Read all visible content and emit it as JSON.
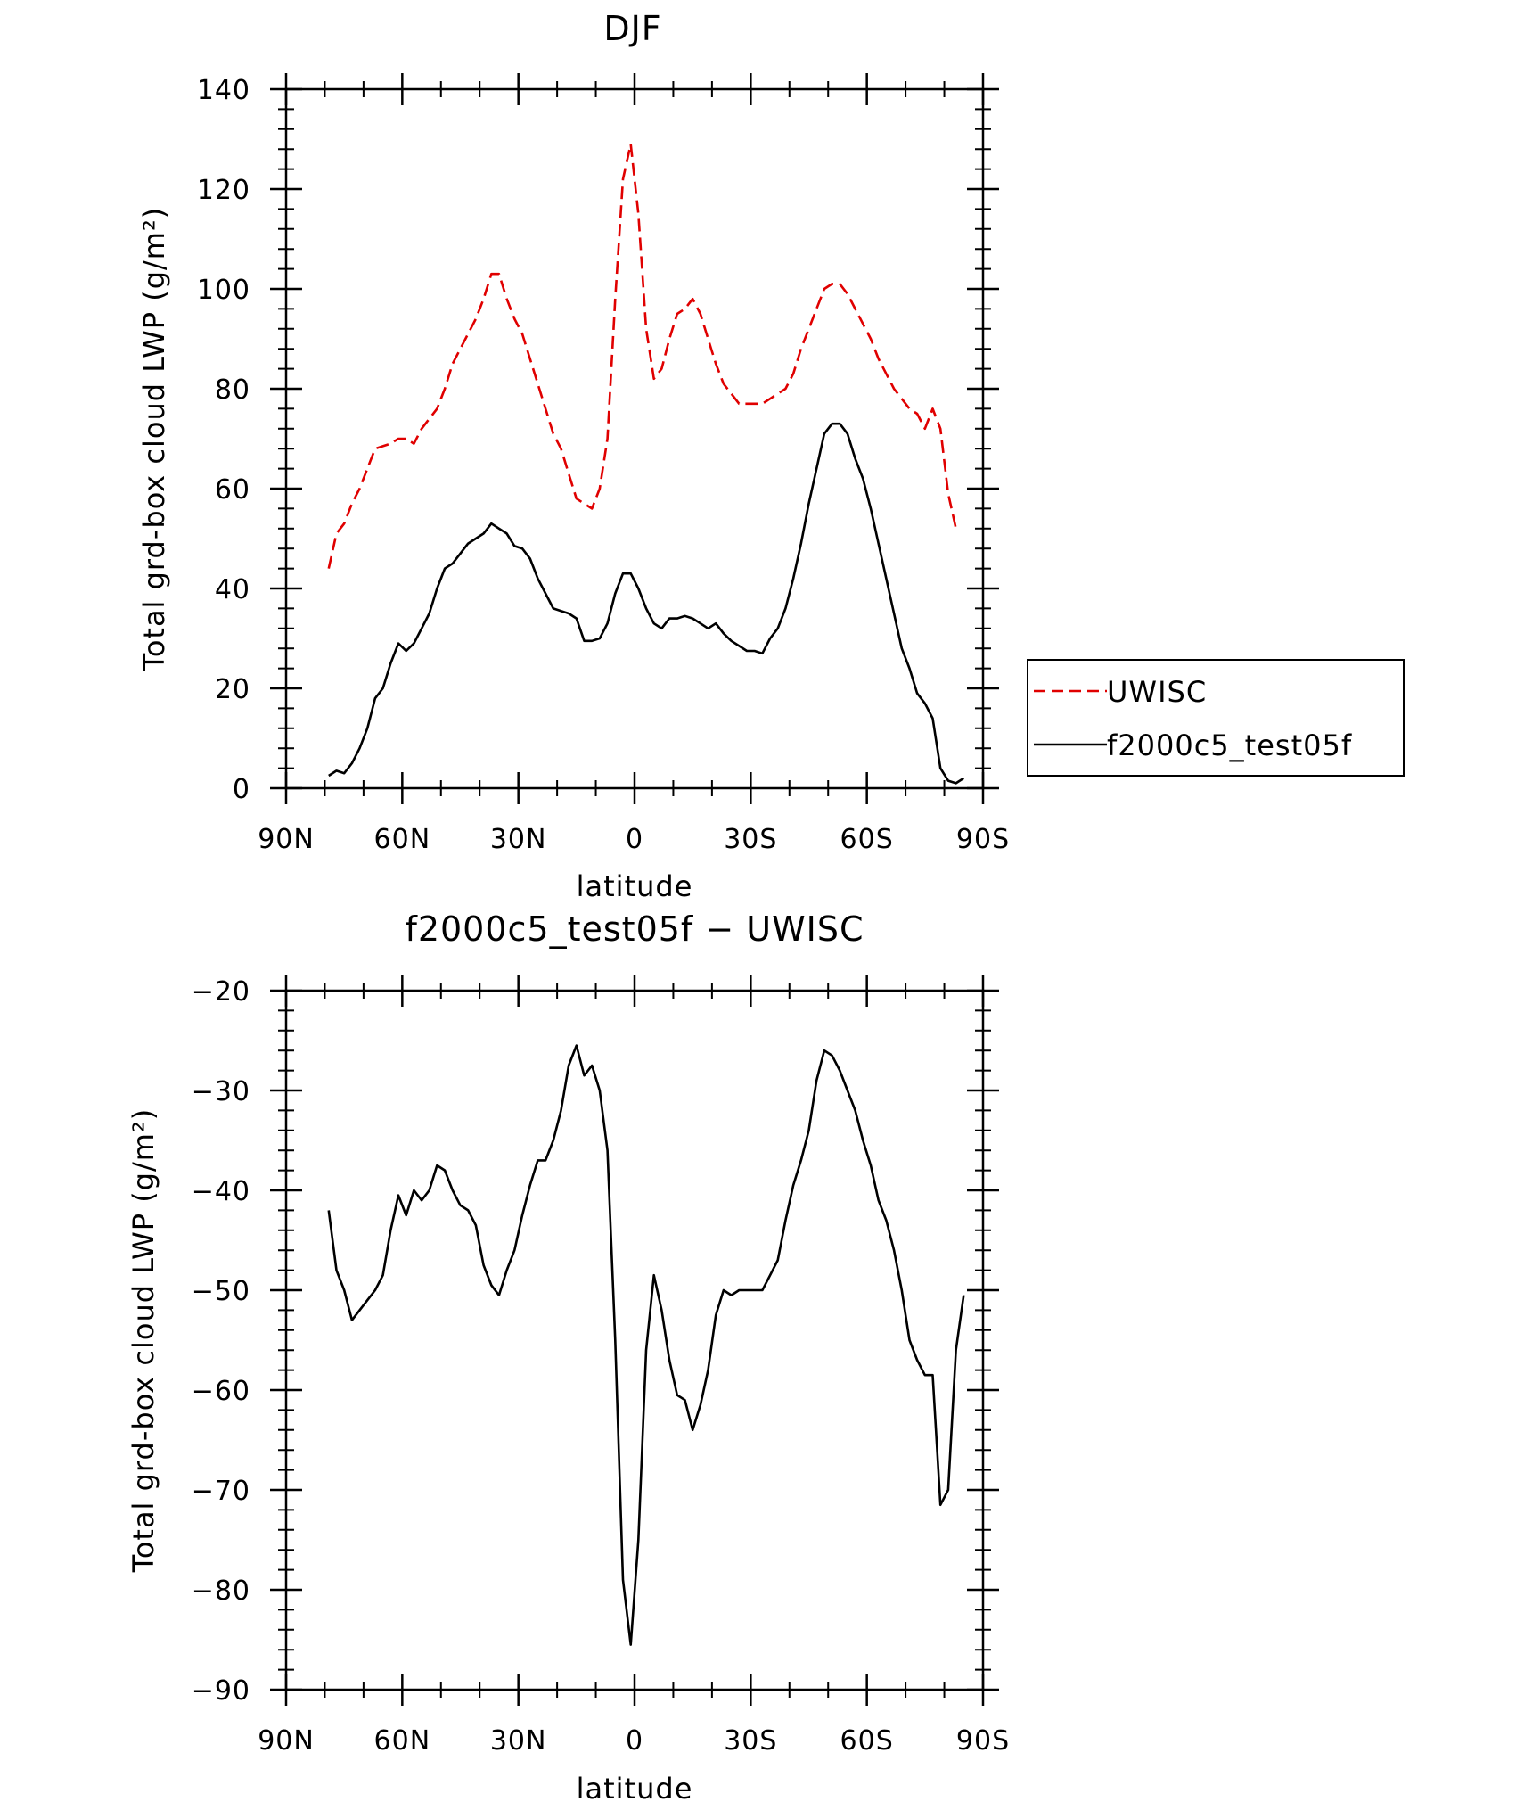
{
  "chart_data": [
    {
      "type": "line",
      "title": "DJF",
      "xlabel": "latitude",
      "ylabel": "Total grd-box cloud LWP (g/m²)",
      "xlim": [
        90,
        -90
      ],
      "ylim": [
        0,
        140
      ],
      "xticks": [
        90,
        60,
        30,
        0,
        -30,
        -60,
        -90
      ],
      "xtick_labels": [
        "90N",
        "60N",
        "30N",
        "0",
        "30S",
        "60S",
        "90S"
      ],
      "yticks": [
        0,
        20,
        40,
        60,
        80,
        100,
        120,
        140
      ],
      "ytick_labels": [
        "0",
        "20",
        "40",
        "60",
        "80",
        "100",
        "120",
        "140"
      ],
      "legend": {
        "placement": "right-outside"
      },
      "series": [
        {
          "name": "UWISC",
          "color": "#e00000",
          "dash": "dashed",
          "points": [
            [
              79,
              44
            ],
            [
              77,
              51
            ],
            [
              75,
              53
            ],
            [
              73,
              57
            ],
            [
              71,
              60
            ],
            [
              69,
              64
            ],
            [
              67,
              68
            ],
            [
              65,
              68.5
            ],
            [
              63,
              69
            ],
            [
              61,
              70
            ],
            [
              59,
              70
            ],
            [
              57,
              69
            ],
            [
              55,
              72
            ],
            [
              53,
              74
            ],
            [
              51,
              76
            ],
            [
              49,
              80
            ],
            [
              47,
              85
            ],
            [
              45,
              88
            ],
            [
              43,
              91
            ],
            [
              41,
              94
            ],
            [
              39,
              98
            ],
            [
              37,
              103
            ],
            [
              35,
              103
            ],
            [
              33,
              98
            ],
            [
              31,
              94
            ],
            [
              29,
              91
            ],
            [
              27,
              86
            ],
            [
              25,
              81
            ],
            [
              23,
              76
            ],
            [
              21,
              71
            ],
            [
              19,
              68
            ],
            [
              17,
              63
            ],
            [
              15,
              58
            ],
            [
              13,
              57
            ],
            [
              11,
              56
            ],
            [
              9,
              60
            ],
            [
              7,
              70
            ],
            [
              5,
              98
            ],
            [
              3,
              122
            ],
            [
              1,
              129
            ],
            [
              -1,
              115
            ],
            [
              -3,
              92
            ],
            [
              -5,
              82
            ],
            [
              -7,
              84
            ],
            [
              -9,
              90
            ],
            [
              -11,
              95
            ],
            [
              -13,
              96
            ],
            [
              -15,
              98
            ],
            [
              -17,
              95
            ],
            [
              -19,
              90
            ],
            [
              -21,
              85
            ],
            [
              -23,
              81
            ],
            [
              -25,
              79
            ],
            [
              -27,
              77
            ],
            [
              -29,
              77
            ],
            [
              -31,
              77
            ],
            [
              -33,
              77
            ],
            [
              -35,
              78
            ],
            [
              -37,
              79
            ],
            [
              -39,
              80
            ],
            [
              -41,
              83
            ],
            [
              -43,
              88
            ],
            [
              -45,
              92
            ],
            [
              -47,
              96
            ],
            [
              -49,
              100
            ],
            [
              -51,
              101
            ],
            [
              -53,
              101
            ],
            [
              -55,
              99
            ],
            [
              -57,
              96
            ],
            [
              -59,
              93
            ],
            [
              -61,
              90
            ],
            [
              -63,
              86
            ],
            [
              -65,
              83
            ],
            [
              -67,
              80
            ],
            [
              -69,
              78
            ],
            [
              -71,
              76
            ],
            [
              -73,
              75
            ],
            [
              -75,
              72
            ],
            [
              -77,
              76
            ],
            [
              -79,
              72
            ],
            [
              -81,
              59
            ],
            [
              -83,
              52
            ]
          ]
        },
        {
          "name": "f2000c5_test05f",
          "color": "#000000",
          "dash": "solid",
          "points": [
            [
              79,
              2.5
            ],
            [
              77,
              3.5
            ],
            [
              75,
              3
            ],
            [
              73,
              5
            ],
            [
              71,
              8
            ],
            [
              69,
              12
            ],
            [
              67,
              18
            ],
            [
              65,
              20
            ],
            [
              63,
              25
            ],
            [
              61,
              29
            ],
            [
              59,
              27.5
            ],
            [
              57,
              29
            ],
            [
              55,
              32
            ],
            [
              53,
              35
            ],
            [
              51,
              40
            ],
            [
              49,
              44
            ],
            [
              47,
              45
            ],
            [
              45,
              47
            ],
            [
              43,
              49
            ],
            [
              41,
              50
            ],
            [
              39,
              51
            ],
            [
              37,
              53
            ],
            [
              35,
              52
            ],
            [
              33,
              51
            ],
            [
              31,
              48.5
            ],
            [
              29,
              48
            ],
            [
              27,
              46
            ],
            [
              25,
              42
            ],
            [
              23,
              39
            ],
            [
              21,
              36
            ],
            [
              19,
              35.5
            ],
            [
              17,
              35
            ],
            [
              15,
              34
            ],
            [
              13,
              29.5
            ],
            [
              11,
              29.5
            ],
            [
              9,
              30
            ],
            [
              7,
              33
            ],
            [
              5,
              39
            ],
            [
              3,
              43
            ],
            [
              1,
              43
            ],
            [
              -1,
              40
            ],
            [
              -3,
              36
            ],
            [
              -5,
              33
            ],
            [
              -7,
              32
            ],
            [
              -9,
              34
            ],
            [
              -11,
              34
            ],
            [
              -13,
              34.5
            ],
            [
              -15,
              34
            ],
            [
              -17,
              33
            ],
            [
              -19,
              32
            ],
            [
              -21,
              33
            ],
            [
              -23,
              31
            ],
            [
              -25,
              29.5
            ],
            [
              -27,
              28.5
            ],
            [
              -29,
              27.5
            ],
            [
              -31,
              27.5
            ],
            [
              -33,
              27
            ],
            [
              -35,
              30
            ],
            [
              -37,
              32
            ],
            [
              -39,
              36
            ],
            [
              -41,
              42
            ],
            [
              -43,
              49
            ],
            [
              -45,
              57
            ],
            [
              -47,
              64
            ],
            [
              -49,
              71
            ],
            [
              -51,
              73
            ],
            [
              -53,
              73
            ],
            [
              -55,
              71
            ],
            [
              -57,
              66
            ],
            [
              -59,
              62
            ],
            [
              -61,
              56
            ],
            [
              -63,
              49
            ],
            [
              -65,
              42
            ],
            [
              -67,
              35
            ],
            [
              -69,
              28
            ],
            [
              -71,
              24
            ],
            [
              -73,
              19
            ],
            [
              -75,
              17
            ],
            [
              -77,
              14
            ],
            [
              -79,
              4
            ],
            [
              -81,
              1.5
            ],
            [
              -83,
              1
            ],
            [
              -85,
              2
            ]
          ]
        }
      ]
    },
    {
      "type": "line",
      "title": "f2000c5_test05f − UWISC",
      "xlabel": "latitude",
      "ylabel": "Total grd-box cloud LWP (g/m²)",
      "xlim": [
        90,
        -90
      ],
      "ylim": [
        -90,
        -20
      ],
      "xticks": [
        90,
        60,
        30,
        0,
        -30,
        -60,
        -90
      ],
      "xtick_labels": [
        "90N",
        "60N",
        "30N",
        "0",
        "30S",
        "60S",
        "90S"
      ],
      "yticks": [
        -90,
        -80,
        -70,
        -60,
        -50,
        -40,
        -30,
        -20
      ],
      "ytick_labels": [
        "−90",
        "−80",
        "−70",
        "−60",
        "−50",
        "−40",
        "−30",
        "−20"
      ],
      "series": [
        {
          "color": "#000000",
          "dash": "solid",
          "points": [
            [
              79,
              -42
            ],
            [
              77,
              -48
            ],
            [
              75,
              -50
            ],
            [
              73,
              -53
            ],
            [
              71,
              -52
            ],
            [
              69,
              -51
            ],
            [
              67,
              -50
            ],
            [
              65,
              -48.5
            ],
            [
              63,
              -44
            ],
            [
              61,
              -40.5
            ],
            [
              59,
              -42.5
            ],
            [
              57,
              -40
            ],
            [
              55,
              -41
            ],
            [
              53,
              -40
            ],
            [
              51,
              -37.5
            ],
            [
              49,
              -38
            ],
            [
              47,
              -40
            ],
            [
              45,
              -41.5
            ],
            [
              43,
              -42
            ],
            [
              41,
              -43.5
            ],
            [
              39,
              -47.5
            ],
            [
              37,
              -49.5
            ],
            [
              35,
              -50.5
            ],
            [
              33,
              -48
            ],
            [
              31,
              -46
            ],
            [
              29,
              -42.5
            ],
            [
              27,
              -39.5
            ],
            [
              25,
              -37
            ],
            [
              23,
              -37
            ],
            [
              21,
              -35
            ],
            [
              19,
              -32
            ],
            [
              17,
              -27.5
            ],
            [
              15,
              -25.5
            ],
            [
              13,
              -28.5
            ],
            [
              11,
              -27.5
            ],
            [
              9,
              -30
            ],
            [
              7,
              -36
            ],
            [
              5,
              -55
            ],
            [
              3,
              -79
            ],
            [
              1,
              -85.5
            ],
            [
              -1,
              -75
            ],
            [
              -3,
              -56
            ],
            [
              -5,
              -48.5
            ],
            [
              -7,
              -52
            ],
            [
              -9,
              -57
            ],
            [
              -11,
              -60.5
            ],
            [
              -13,
              -61
            ],
            [
              -15,
              -64
            ],
            [
              -17,
              -61.5
            ],
            [
              -19,
              -58
            ],
            [
              -21,
              -52.5
            ],
            [
              -23,
              -50
            ],
            [
              -25,
              -50.5
            ],
            [
              -27,
              -50
            ],
            [
              -29,
              -50
            ],
            [
              -31,
              -50
            ],
            [
              -33,
              -50
            ],
            [
              -35,
              -48.5
            ],
            [
              -37,
              -47
            ],
            [
              -39,
              -43
            ],
            [
              -41,
              -39.5
            ],
            [
              -43,
              -37
            ],
            [
              -45,
              -34
            ],
            [
              -47,
              -29
            ],
            [
              -49,
              -26
            ],
            [
              -51,
              -26.5
            ],
            [
              -53,
              -28
            ],
            [
              -55,
              -30
            ],
            [
              -57,
              -32
            ],
            [
              -59,
              -35
            ],
            [
              -61,
              -37.5
            ],
            [
              -63,
              -41
            ],
            [
              -65,
              -43
            ],
            [
              -67,
              -46
            ],
            [
              -69,
              -50
            ],
            [
              -71,
              -55
            ],
            [
              -73,
              -57
            ],
            [
              -75,
              -58.5
            ],
            [
              -77,
              -58.5
            ],
            [
              -79,
              -71.5
            ],
            [
              -81,
              -70
            ],
            [
              -83,
              -56
            ],
            [
              -85,
              -50.5
            ]
          ]
        }
      ]
    }
  ]
}
